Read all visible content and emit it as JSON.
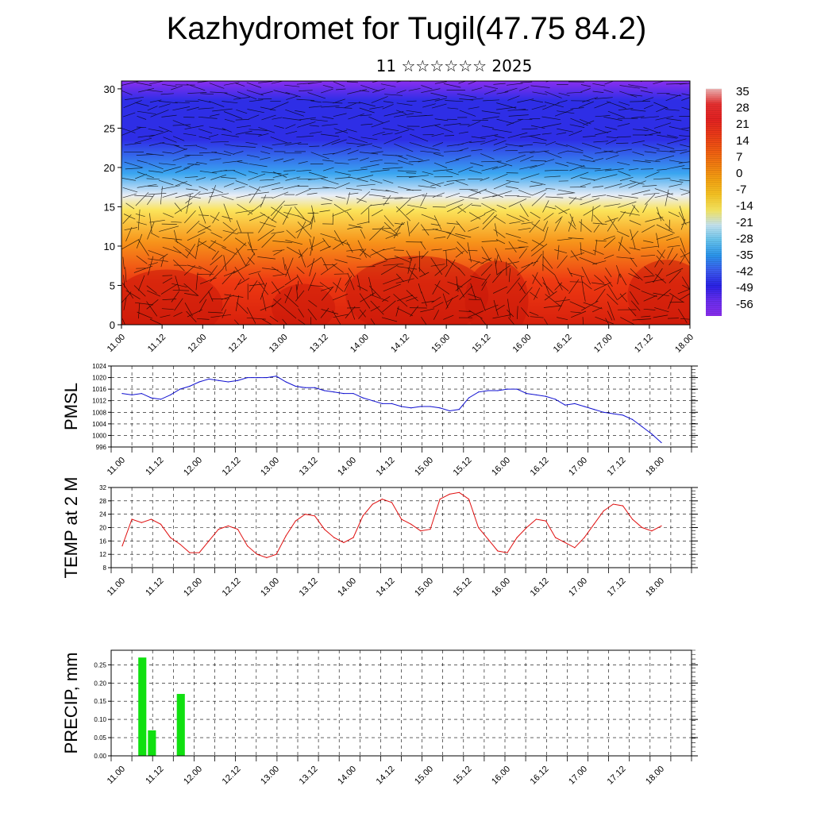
{
  "header": {
    "title": "Kazhydromet for Tugil(47.75 84.2)",
    "subtitle": "11 ☆☆☆☆☆☆ 2025"
  },
  "time_ticks": [
    "11.00",
    "11.12",
    "12.00",
    "12.12",
    "13.00",
    "13.12",
    "14.00",
    "14.12",
    "15.00",
    "15.12",
    "16.00",
    "16.12",
    "17.00",
    "17.12",
    "18.00"
  ],
  "chart_data": [
    {
      "id": "cross-section",
      "type": "heatmap",
      "title": "",
      "yticks": [
        0,
        5,
        10,
        15,
        20,
        25,
        30
      ],
      "ylim": [
        0,
        31
      ],
      "colorbar_labels": [
        "35",
        "28",
        "21",
        "14",
        "7",
        "0",
        "-7",
        "-14",
        "-21",
        "-28",
        "-35",
        "-42",
        "-49",
        "-56"
      ],
      "colorbar_colors": [
        "#f2b6b6",
        "#e83030",
        "#e52222",
        "#ec3a18",
        "#f25a12",
        "#f47e10",
        "#f7a412",
        "#f9c624",
        "#fbea62",
        "#c8e8f4",
        "#68c6f0",
        "#2a96ee",
        "#3c5cf0",
        "#2a22e8",
        "#6a2ef0",
        "#8a2ef0"
      ],
      "colors": {
        "top": "#8a2ef0",
        "upper": "#2e2ee6",
        "mid": "#3aa6f0",
        "pale": "#eaeef6",
        "yellow": "#fbe45a",
        "orange": "#f7941a",
        "red": "#ee3a12",
        "darkred": "#d8200c"
      }
    },
    {
      "id": "pmsl",
      "type": "line",
      "ylabel": "PMSL",
      "ylim": [
        996,
        1024
      ],
      "yticks": [
        "996",
        "1000",
        "1004",
        "1008",
        "1012",
        "1016",
        "1020",
        "1024"
      ],
      "color": "#1010d0",
      "x": [
        0,
        3,
        6,
        9,
        12,
        15,
        18,
        21,
        24,
        27,
        30,
        33,
        36,
        39,
        42,
        45,
        48,
        51,
        54,
        57,
        60,
        63,
        66,
        69,
        72,
        75,
        78,
        81,
        84,
        87,
        90,
        93,
        96,
        99,
        102,
        105,
        108,
        111,
        114,
        117,
        120,
        123,
        126,
        129,
        132,
        135,
        138,
        141,
        144,
        147,
        150,
        153,
        156,
        159,
        162,
        165,
        168
      ],
      "values": [
        1014.5,
        1014,
        1014.5,
        1013,
        1012.5,
        1014,
        1016,
        1017,
        1018.5,
        1019.5,
        1019,
        1018.5,
        1019,
        1020,
        1020,
        1020,
        1020.5,
        1018.5,
        1017,
        1016.5,
        1016.5,
        1015.5,
        1015,
        1014.5,
        1014.5,
        1013,
        1012,
        1011,
        1011,
        1010,
        1009.5,
        1010,
        1010,
        1009.5,
        1008.5,
        1009,
        1013,
        1015,
        1015.5,
        1015.5,
        1016,
        1016,
        1014.5,
        1014,
        1013.5,
        1012.5,
        1010.5,
        1011,
        1010,
        1009,
        1008,
        1007.5,
        1007,
        1005.5,
        1003,
        1000.5,
        997.5
      ]
    },
    {
      "id": "temp2m",
      "type": "line",
      "ylabel": "TEMP at 2 M",
      "ylim": [
        8,
        32
      ],
      "yticks": [
        "8",
        "12",
        "16",
        "20",
        "24",
        "28",
        "32"
      ],
      "color": "#e01010",
      "x": [
        0,
        3,
        6,
        9,
        12,
        15,
        18,
        21,
        24,
        27,
        30,
        33,
        36,
        39,
        42,
        45,
        48,
        51,
        54,
        57,
        60,
        63,
        66,
        69,
        72,
        75,
        78,
        81,
        84,
        87,
        90,
        93,
        96,
        99,
        102,
        105,
        108,
        111,
        114,
        117,
        120,
        123,
        126,
        129,
        132,
        135,
        138,
        141,
        144,
        147,
        150,
        153,
        156,
        159,
        162,
        165,
        168
      ],
      "values": [
        14.5,
        22.5,
        21.5,
        22.5,
        21,
        17,
        15,
        12.5,
        12.5,
        16,
        19.5,
        20.5,
        19.5,
        14.5,
        12,
        11,
        12,
        17.5,
        22,
        24,
        23.5,
        19.5,
        17,
        15.5,
        17,
        23.5,
        27,
        28.5,
        27.5,
        22.5,
        21,
        19,
        19.5,
        28.5,
        30,
        30.5,
        28.5,
        20,
        16.5,
        13,
        12.5,
        17,
        20,
        22.5,
        22,
        17,
        15.5,
        14,
        17,
        21,
        25,
        27,
        26.5,
        22.5,
        20,
        19,
        20.5
      ]
    },
    {
      "id": "precip",
      "type": "bar",
      "ylabel": "PRECIP, mm",
      "ylim": [
        0,
        0.29
      ],
      "yticks": [
        "0.00",
        "0.05",
        "0.10",
        "0.15",
        "0.20",
        "0.25"
      ],
      "color": "#10e010",
      "bars": [
        {
          "x": 6,
          "value": 0.27
        },
        {
          "x": 9,
          "value": 0.07
        },
        {
          "x": 18,
          "value": 0.17
        }
      ]
    }
  ]
}
